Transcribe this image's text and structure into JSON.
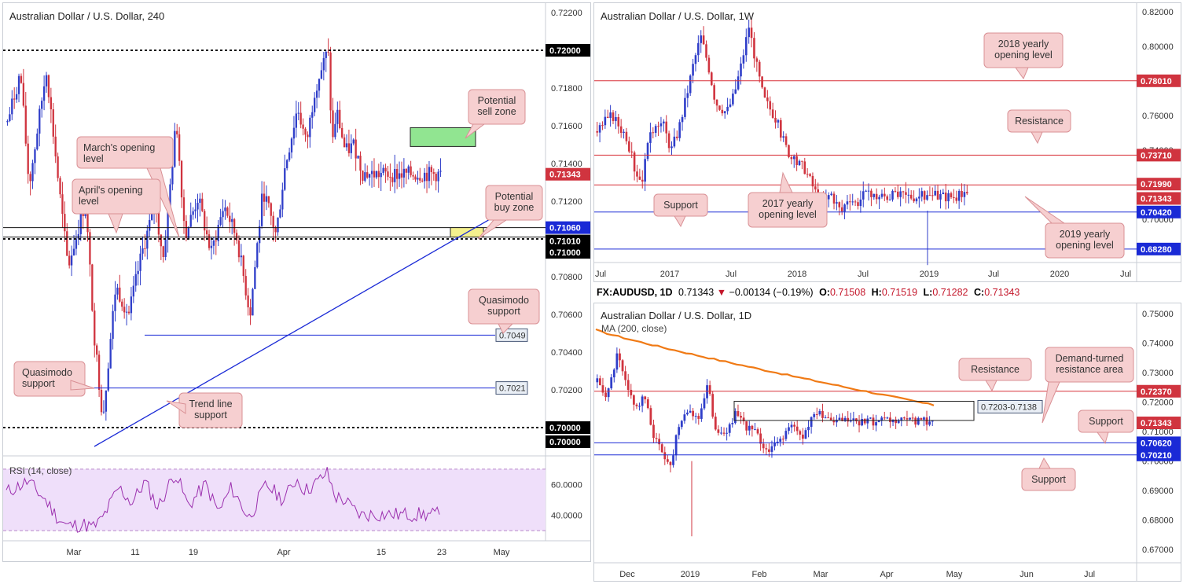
{
  "colors": {
    "bull": "#2f3ec9",
    "bear": "#d0343f",
    "callout_bg": "#f6cfd0",
    "callout_border": "#d99095",
    "support": "#1a2ad6",
    "resistance": "#d83138",
    "ma": "#f07a15",
    "rsi": "#9b2fae",
    "rsi_band": "#efdffa"
  },
  "panels": [
    {
      "id": "h4",
      "title": "Australian Dollar / U.S. Dollar, 240"
    },
    {
      "id": "w1",
      "title": "Australian Dollar / U.S. Dollar, 1W"
    },
    {
      "id": "d1",
      "title": "Australian Dollar / U.S. Dollar, 1D",
      "subtitle": "MA (200, close)"
    }
  ],
  "legend_bar": {
    "symbol": "FX:AUDUSD, 1D",
    "last": "0.71343",
    "change": "−0.00134 (−0.19%)",
    "o_label": "O:",
    "o": "0.71508",
    "h_label": "H:",
    "h": "0.71519",
    "l_label": "L:",
    "l": "0.71282",
    "c_label": "C:",
    "c": "0.71343"
  },
  "rsi": {
    "label": "RSI (14, close)",
    "ticks": [
      "60.0000",
      "40.0000"
    ]
  },
  "chart_data": [
    {
      "type": "candlestick",
      "timeframe": "240",
      "title": "Australian Dollar / U.S. Dollar, 240",
      "ylim": [
        0.6985,
        0.7225
      ],
      "yticks": [
        "0.72200",
        "0.71800",
        "0.71600",
        "0.71400",
        "0.71200",
        "0.70800",
        "0.70600",
        "0.70400",
        "0.70200",
        "0.70000"
      ],
      "ytick_values": [
        0.722,
        0.718,
        0.716,
        0.714,
        0.712,
        0.708,
        0.706,
        0.704,
        0.702,
        0.7
      ],
      "xticks": [
        "Mar",
        "11",
        "19",
        "Apr",
        "15",
        "23",
        "May"
      ],
      "price_tags": [
        {
          "label": "0.72000",
          "value": 0.72,
          "color": "#000000"
        },
        {
          "label": "0.71343",
          "value": 0.71343,
          "color": "#d0343f"
        },
        {
          "label": "0.71060",
          "value": 0.7106,
          "color": "#1a2ad6"
        },
        {
          "label": "0.71010",
          "value": 0.7101,
          "color": "#000000"
        },
        {
          "label": "0.71000",
          "value": 0.71,
          "color": "#000000"
        },
        {
          "label": "0.70000",
          "value": 0.7,
          "color": "#000000"
        }
      ],
      "levels": [
        {
          "value": 0.72,
          "style": "dotted"
        },
        {
          "value": 0.7106,
          "style": "solid"
        },
        {
          "value": 0.7101,
          "style": "solid"
        },
        {
          "value": 0.71,
          "style": "dotted"
        },
        {
          "value": 0.7,
          "style": "dotted"
        },
        {
          "value": 0.7049,
          "style": "blue",
          "label": "0.7049"
        },
        {
          "value": 0.7021,
          "style": "blue",
          "label": "0.7021"
        }
      ],
      "zones": [
        {
          "name": "Potential sell zone",
          "top": 0.7159,
          "bottom": 0.7149,
          "color": "#7ee07e"
        },
        {
          "name": "Potential buy zone",
          "top": 0.7106,
          "bottom": 0.7101,
          "color": "#f4f08e"
        }
      ],
      "trendline": {
        "from": 0.699,
        "to": 0.7119
      },
      "annotations": [
        "March's opening level",
        "April's opening level",
        "Potential sell zone",
        "Potential buy zone",
        "Quasimodo support",
        "Quasimodo support",
        "Trend line support"
      ],
      "close": 0.71343,
      "rsi_last": 40.5
    },
    {
      "type": "candlestick",
      "timeframe": "1W",
      "title": "Australian Dollar / U.S. Dollar, 1W",
      "ylim": [
        0.675,
        0.825
      ],
      "yticks": [
        "0.82000",
        "0.80000",
        "0.76000",
        "0.74000",
        "0.72000",
        "0.70000"
      ],
      "ytick_values": [
        0.82,
        0.8,
        0.76,
        0.74,
        0.72,
        0.7
      ],
      "xticks": [
        "Jul",
        "2017",
        "Jul",
        "2018",
        "Jul",
        "2019",
        "Jul",
        "2020",
        "Jul"
      ],
      "price_tags": [
        {
          "label": "0.78010",
          "value": 0.7801,
          "color": "#d0343f"
        },
        {
          "label": "0.73710",
          "value": 0.7371,
          "color": "#d0343f"
        },
        {
          "label": "0.71990",
          "value": 0.7199,
          "color": "#d0343f"
        },
        {
          "label": "0.71343",
          "value": 0.71343,
          "color": "#d0343f"
        },
        {
          "label": "0.70420",
          "value": 0.7042,
          "color": "#1a2ad6"
        },
        {
          "label": "0.68280",
          "value": 0.6828,
          "color": "#1a2ad6"
        }
      ],
      "annotations": [
        "2018 yearly opening level",
        "Resistance",
        "2017 yearly opening level",
        "Support",
        "2019 yearly opening level"
      ],
      "close": 0.71343
    },
    {
      "type": "candlestick",
      "timeframe": "1D",
      "title": "Australian Dollar / U.S. Dollar, 1D",
      "ylim": [
        0.6655,
        0.7535
      ],
      "yticks": [
        "0.75000",
        "0.74000",
        "0.73000",
        "0.72000",
        "0.71000",
        "0.70000",
        "0.69000",
        "0.68000",
        "0.67000"
      ],
      "ytick_values": [
        0.75,
        0.74,
        0.73,
        0.72,
        0.71,
        0.7,
        0.69,
        0.68,
        0.67
      ],
      "xticks": [
        "Dec",
        "2019",
        "Feb",
        "Mar",
        "Apr",
        "May",
        "Jun",
        "Jul"
      ],
      "price_tags": [
        {
          "label": "0.72370",
          "value": 0.7237,
          "color": "#d0343f"
        },
        {
          "label": "0.71343",
          "value": 0.71343,
          "color": "#d0343f"
        },
        {
          "label": "0.70620",
          "value": 0.7062,
          "color": "#1a2ad6"
        },
        {
          "label": "0.70210",
          "value": 0.7021,
          "color": "#1a2ad6"
        }
      ],
      "box": {
        "label": "0.7203-0.7138",
        "top": 0.7203,
        "bottom": 0.7138
      },
      "ma": {
        "label": "MA (200, close)",
        "from": 0.7445,
        "to": 0.719
      },
      "annotations": [
        "Resistance",
        "Demand-turned resistance area",
        "Support",
        "Support"
      ],
      "close": 0.71343
    }
  ]
}
